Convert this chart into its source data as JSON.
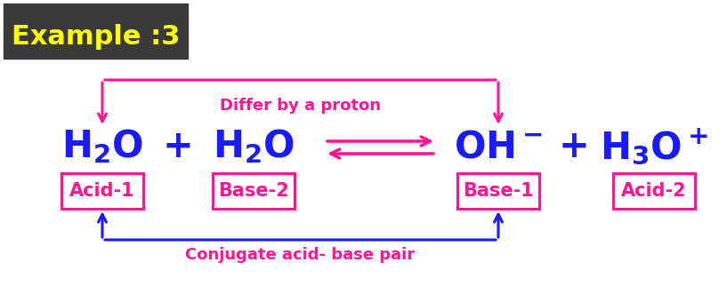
{
  "bg_color": "#ffffff",
  "title_bg": "#3a3a3a",
  "title_text": "Example :3",
  "title_color": "#ffff00",
  "formula_color": "#1a1aff",
  "label_color": "#ff1493",
  "top_arrow_color": "#ff1493",
  "bot_arrow_color": "#1a1aff",
  "eq_arrow_color": "#ff1493",
  "top_label": "Differ by a proton",
  "bottom_label": "Conjugate acid- base pair",
  "figsize": [
    8.17,
    3.31
  ],
  "dpi": 100
}
